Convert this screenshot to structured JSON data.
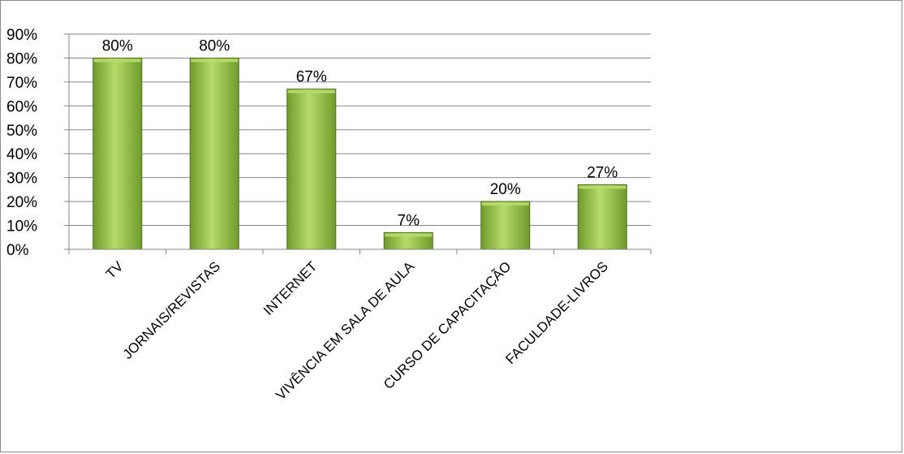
{
  "chart_data": {
    "type": "bar",
    "title": "",
    "xlabel": "",
    "ylabel": "",
    "categories": [
      "TV",
      "JORNAIS/REVISTAS",
      "INTERNET",
      "VIVÊNCIA EM SALA DE AULA",
      "CURSO DE CAPACITAÇÃO",
      "FACULDADE-LIVROS"
    ],
    "values": [
      80,
      80,
      67,
      7,
      20,
      27
    ],
    "data_labels": [
      "80%",
      "80%",
      "67%",
      "7%",
      "20%",
      "27%"
    ],
    "ylim": [
      0,
      90
    ],
    "yticks": [
      0,
      10,
      20,
      30,
      40,
      50,
      60,
      70,
      80,
      90
    ],
    "ytick_labels": [
      "0%",
      "10%",
      "20%",
      "30%",
      "40%",
      "50%",
      "60%",
      "70%",
      "80%",
      "90%"
    ],
    "grid": true,
    "legend": "none",
    "colors": {
      "bar_fill_light": "#b6dc6a",
      "bar_fill_dark": "#6f9a2c",
      "bar_edge": "#4f6f1e",
      "gridline": "#868686",
      "axis": "#868686"
    }
  }
}
